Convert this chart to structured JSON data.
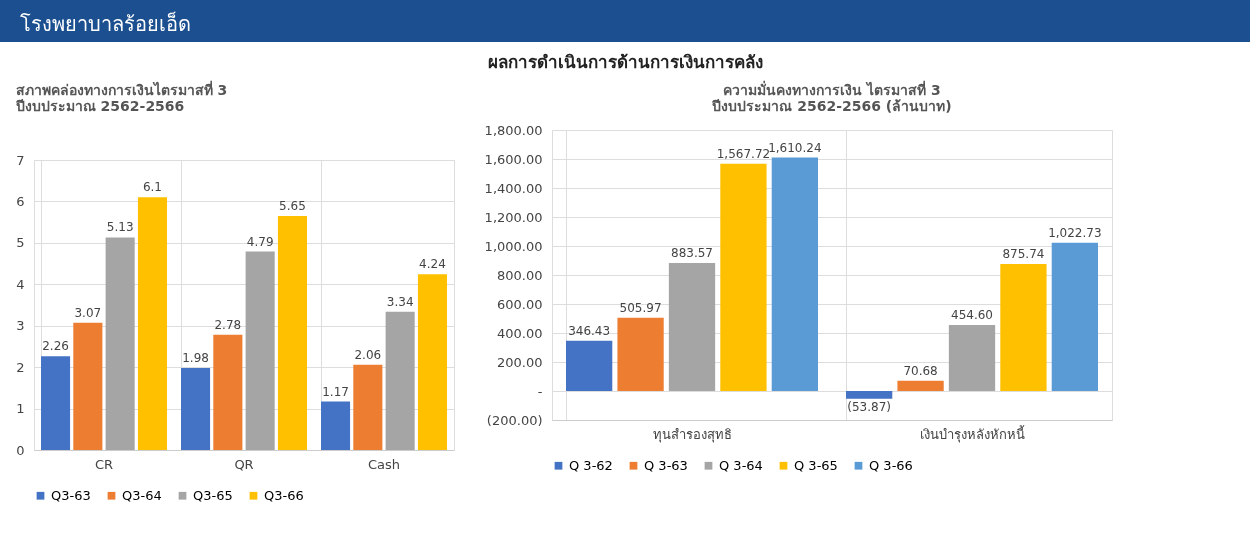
{
  "chart_data": [
    {
      "type": "bar",
      "title": "สภาพคล่องทางการเงินไตรมาสที่  3\nปีงบประมาณ 2562-2566",
      "annotations": [
        "โรงพยาบาลร้อยเอ็ด",
        "ผลการดำเนินการด้านการเงินการคลัง"
      ],
      "categories": [
        "CR",
        "QR",
        "Cash"
      ],
      "series": [
        {
          "name": "Q3-63",
          "color": "#4472c4",
          "values": [
            2.26,
            1.98,
            1.17
          ]
        },
        {
          "name": "Q3-64",
          "color": "#ed7d31",
          "values": [
            3.07,
            2.78,
            2.06
          ]
        },
        {
          "name": "Q3-65",
          "color": "#a5a5a5",
          "values": [
            5.13,
            4.79,
            3.34
          ]
        },
        {
          "name": "Q3-66",
          "color": "#ffc000",
          "values": [
            6.1,
            5.65,
            4.24
          ]
        }
      ],
      "ylim": [
        0,
        7
      ],
      "yticks": [
        0,
        1,
        2,
        3,
        4,
        5,
        6,
        7
      ],
      "grid": "y",
      "legend": "bottom",
      "data_labels": true
    },
    {
      "type": "bar",
      "title": "ความมั่นคงทางการเงิน ไตรมาสที่ 3\nปีงบประมาณ 2562-2566 (ล้านบาท)",
      "categories": [
        "ทุนสำรองสุทธิ",
        "เงินบำรุงหลังหักหนี้"
      ],
      "series": [
        {
          "name": "Q 3-62",
          "color": "#4472c4",
          "values": [
            346.43,
            -53.87
          ],
          "value_labels": [
            "346.43",
            "(53.87)"
          ]
        },
        {
          "name": "Q 3-63",
          "color": "#ed7d31",
          "values": [
            505.97,
            70.68
          ],
          "value_labels": [
            "505.97",
            "70.68"
          ]
        },
        {
          "name": "Q 3-64",
          "color": "#a5a5a5",
          "values": [
            883.57,
            454.6
          ],
          "value_labels": [
            "883.57",
            "454.60"
          ]
        },
        {
          "name": "Q 3-65",
          "color": "#ffc000",
          "values": [
            1567.72,
            875.74
          ],
          "value_labels": [
            "1,567.72",
            "875.74"
          ]
        },
        {
          "name": "Q 3-66",
          "color": "#5b9bd5",
          "values": [
            1610.24,
            1022.73
          ],
          "value_labels": [
            "1,610.24",
            "1,022.73"
          ]
        }
      ],
      "ylim": [
        -200,
        1800
      ],
      "yticks": [
        {
          "value": -200,
          "label": "(200.00)"
        },
        {
          "value": 0,
          "label": "-"
        },
        {
          "value": 200,
          "label": "200.00"
        },
        {
          "value": 400,
          "label": "400.00"
        },
        {
          "value": 600,
          "label": "600.00"
        },
        {
          "value": 800,
          "label": "800.00"
        },
        {
          "value": 1000,
          "label": "1,000.00"
        },
        {
          "value": 1200,
          "label": "1,200.00"
        },
        {
          "value": 1400,
          "label": "1,400.00"
        },
        {
          "value": 1600,
          "label": "1,600.00"
        },
        {
          "value": 1800,
          "label": "1,800.00"
        }
      ],
      "grid": "y",
      "legend": "bottom"
    }
  ]
}
